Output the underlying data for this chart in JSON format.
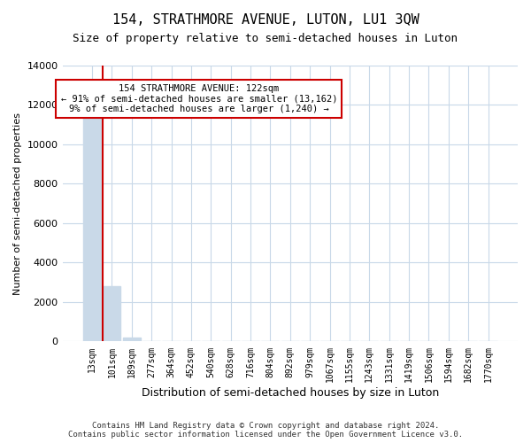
{
  "title": "154, STRATHMORE AVENUE, LUTON, LU1 3QW",
  "subtitle": "Size of property relative to semi-detached houses in Luton",
  "xlabel": "Distribution of semi-detached houses by size in Luton",
  "ylabel": "Number of semi-detached properties",
  "footer_line1": "Contains HM Land Registry data © Crown copyright and database right 2024.",
  "footer_line2": "Contains public sector information licensed under the Open Government Licence v3.0.",
  "annotation_line1": "154 STRATHMORE AVENUE: 122sqm",
  "annotation_line2": "← 91% of semi-detached houses are smaller (13,162)",
  "annotation_line3": "9% of semi-detached houses are larger (1,240) →",
  "property_bin_index": 1,
  "bar_color": "#c9d9e8",
  "red_line_color": "#cc0000",
  "annotation_box_color": "#cc0000",
  "ylim": [
    0,
    14000
  ],
  "yticks": [
    0,
    2000,
    4000,
    6000,
    8000,
    10000,
    12000,
    14000
  ],
  "bin_labels": [
    "13sqm",
    "101sqm",
    "189sqm",
    "277sqm",
    "364sqm",
    "452sqm",
    "540sqm",
    "628sqm",
    "716sqm",
    "804sqm",
    "892sqm",
    "979sqm",
    "1067sqm",
    "1155sqm",
    "1243sqm",
    "1331sqm",
    "1419sqm",
    "1506sqm",
    "1594sqm",
    "1682sqm",
    "1770sqm"
  ],
  "bar_values": [
    13162,
    2800,
    180,
    20,
    5,
    2,
    1,
    1,
    1,
    1,
    1,
    1,
    0,
    0,
    0,
    0,
    0,
    0,
    0,
    0,
    0
  ],
  "background_color": "#ffffff",
  "grid_color": "#c8d8e8"
}
